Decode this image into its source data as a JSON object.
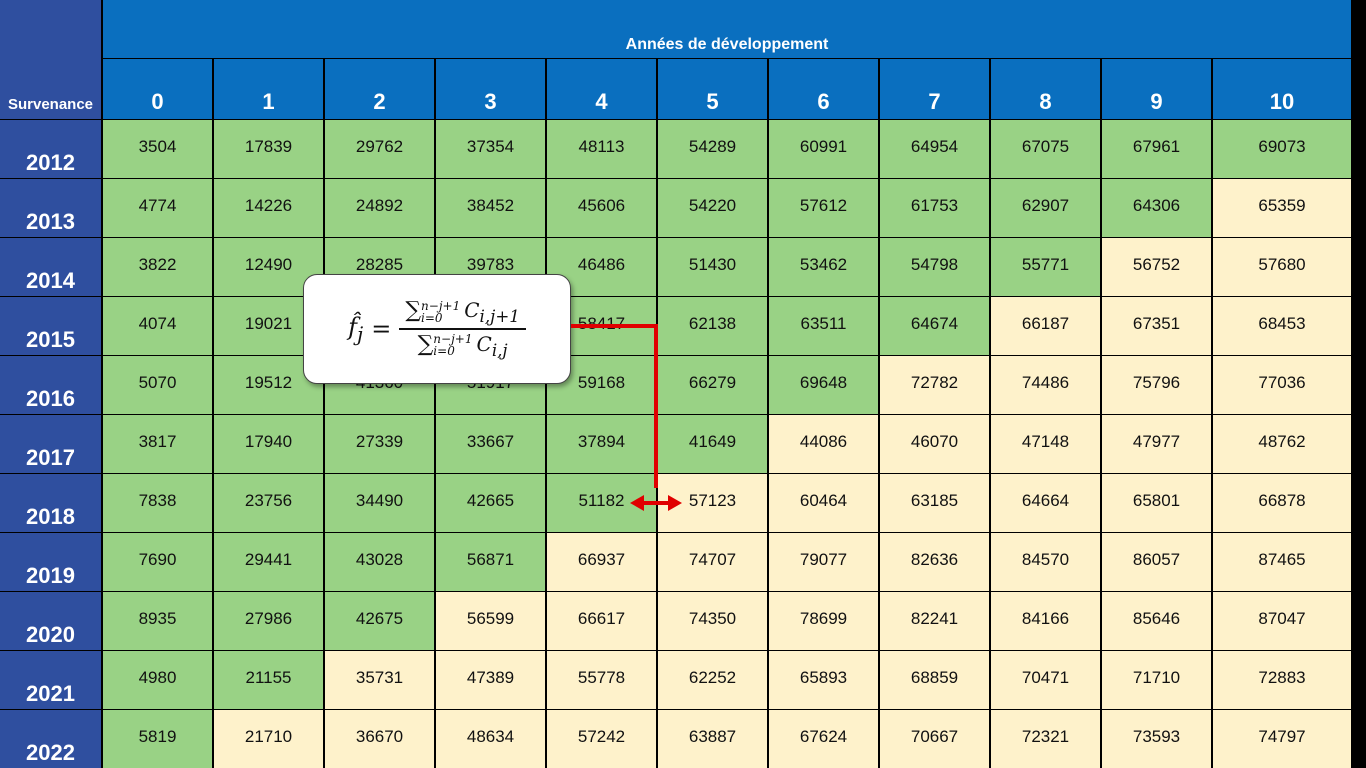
{
  "table": {
    "row_axis_label": "Survenance",
    "dev_title": "Années de développement",
    "dev_years": [
      "0",
      "1",
      "2",
      "3",
      "4",
      "5",
      "6",
      "7",
      "8",
      "9",
      "10"
    ],
    "rows": [
      {
        "year": "2012",
        "values": [
          "3504",
          "17839",
          "29762",
          "37354",
          "48113",
          "54289",
          "60991",
          "64954",
          "67075",
          "67961",
          "69073"
        ],
        "known": 11
      },
      {
        "year": "2013",
        "values": [
          "4774",
          "14226",
          "24892",
          "38452",
          "45606",
          "54220",
          "57612",
          "61753",
          "62907",
          "64306",
          "65359"
        ],
        "known": 10
      },
      {
        "year": "2014",
        "values": [
          "3822",
          "12490",
          "28285",
          "39783",
          "46486",
          "51430",
          "53462",
          "54798",
          "55771",
          "56752",
          "57680"
        ],
        "known": 9
      },
      {
        "year": "2015",
        "values": [
          "4074",
          "19021",
          "",
          "",
          "58417",
          "62138",
          "63511",
          "64674",
          "66187",
          "67351",
          "68453"
        ],
        "known": 8
      },
      {
        "year": "2016",
        "values": [
          "5070",
          "19512",
          "41360",
          "51917",
          "59168",
          "66279",
          "69648",
          "72782",
          "74486",
          "75796",
          "77036"
        ],
        "known": 7
      },
      {
        "year": "2017",
        "values": [
          "3817",
          "17940",
          "27339",
          "33667",
          "37894",
          "41649",
          "44086",
          "46070",
          "47148",
          "47977",
          "48762"
        ],
        "known": 6
      },
      {
        "year": "2018",
        "values": [
          "7838",
          "23756",
          "34490",
          "42665",
          "51182",
          "57123",
          "60464",
          "63185",
          "64664",
          "65801",
          "66878"
        ],
        "known": 5
      },
      {
        "year": "2019",
        "values": [
          "7690",
          "29441",
          "43028",
          "56871",
          "66937",
          "74707",
          "79077",
          "82636",
          "84570",
          "86057",
          "87465"
        ],
        "known": 4
      },
      {
        "year": "2020",
        "values": [
          "8935",
          "27986",
          "42675",
          "56599",
          "66617",
          "74350",
          "78699",
          "82241",
          "84166",
          "85646",
          "87047"
        ],
        "known": 3
      },
      {
        "year": "2021",
        "values": [
          "4980",
          "21155",
          "35731",
          "47389",
          "55778",
          "62252",
          "65893",
          "68859",
          "70471",
          "71710",
          "72883"
        ],
        "known": 2
      },
      {
        "year": "2022",
        "values": [
          "5819",
          "21710",
          "36670",
          "48634",
          "57242",
          "63887",
          "67624",
          "70667",
          "72321",
          "73593",
          "74797"
        ],
        "known": 1
      }
    ]
  },
  "formula": {
    "lhs": "f̂",
    "lhs_sub": "j",
    "equals": "=",
    "sum_symbol": "∑",
    "num_upper": "n−j+1",
    "num_lower": "i=0",
    "num_term": "C",
    "num_sub": "i,j+1",
    "den_upper": "n−j+1",
    "den_lower": "i=0",
    "den_term": "C",
    "den_sub": "i,j"
  },
  "colors": {
    "known_cell": "#99d285",
    "projected_cell": "#fef2cb",
    "header_blue": "#0a6fbf",
    "row_header_blue": "#2f4f9f",
    "arrow_red": "#e00000"
  }
}
